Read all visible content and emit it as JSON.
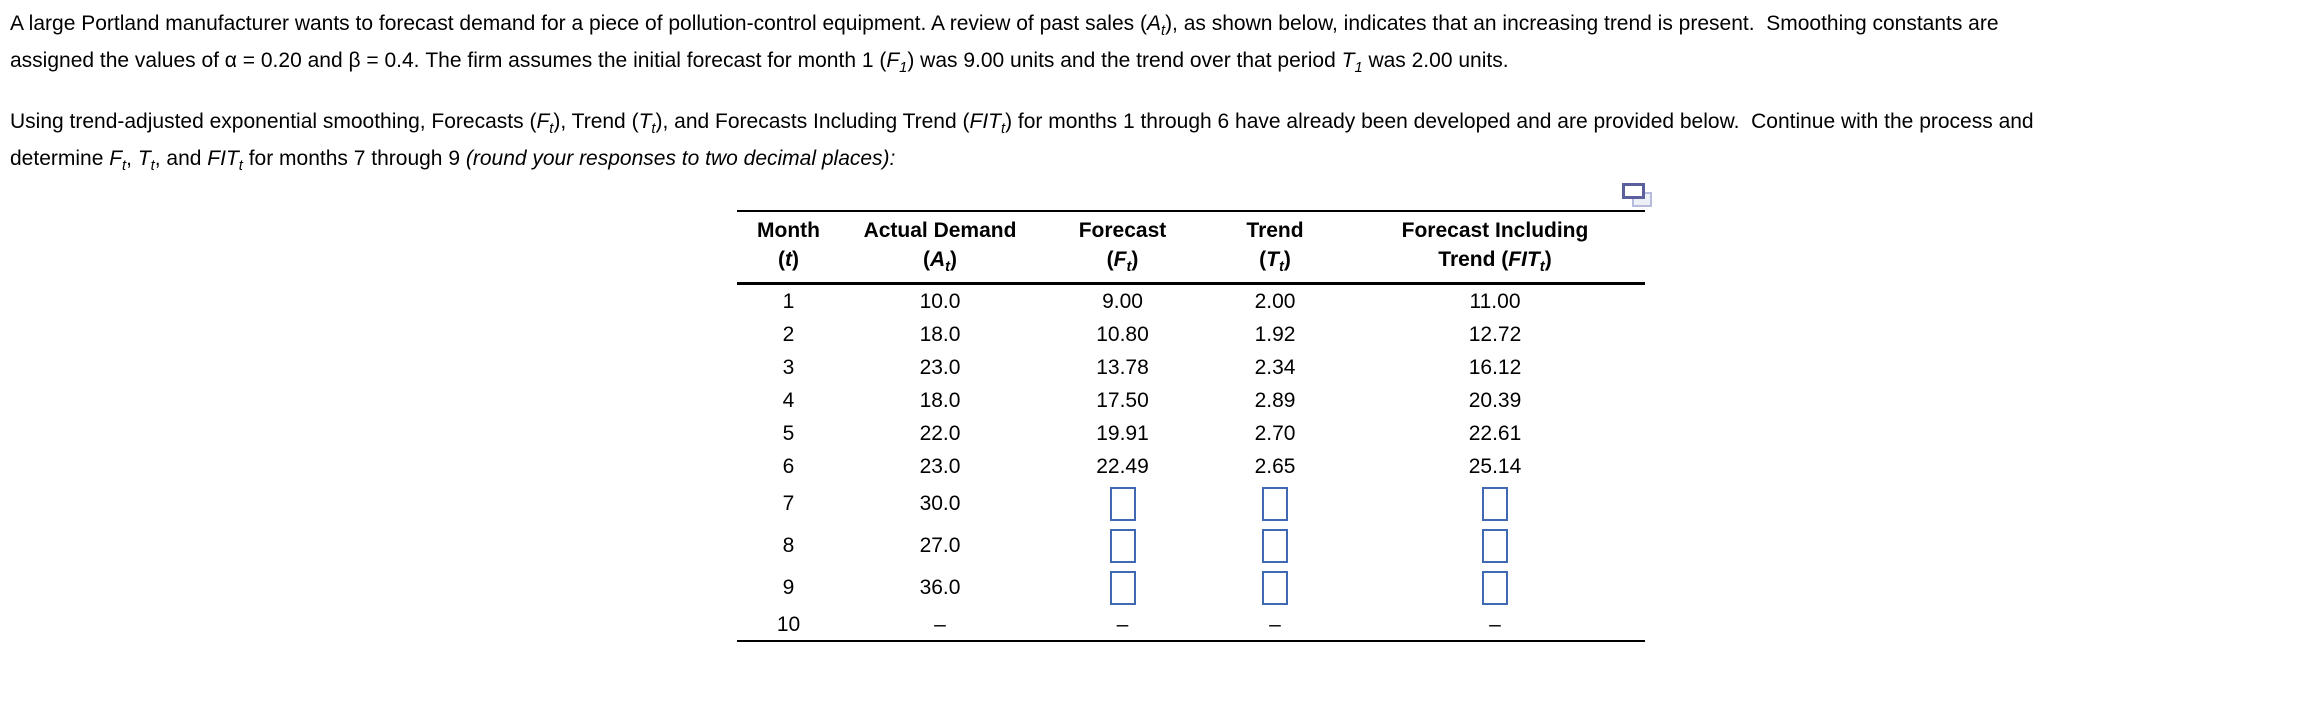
{
  "page": {
    "background": "#ffffff",
    "accent_blue": "#4169b1",
    "icon": {
      "name": "copy-table-icon",
      "shape": "two-overlapping-rectangles",
      "color_front": "#5b5f9e",
      "color_back": "#b7bcde"
    }
  },
  "intro": {
    "line1": "A large Portland manufacturer wants to forecast demand for a piece of pollution-control equipment. A review of past sales (*A*~t~), as shown below, indicates that an increasing trend is present.  Smoothing constants are",
    "line2": "assigned the values of α = 0.20 and β = 0.4. The firm assumes the initial forecast for month 1 (*F*~1~) was 9.00 units and the trend over that period *T*~1~ was 2.00 units."
  },
  "task": {
    "line1": "Using trend-adjusted exponential smoothing, Forecasts (*F*~t~), Trend (*T*~t~), and Forecasts Including Trend (*FIT*~t~) for months 1 through 6 have already been developed and are provided below.  Continue with the process and",
    "line2": "determine *F*~t~, *T*~t~, and *FIT*~t~ for months 7 through 9 *(round your responses to two decimal places):*"
  },
  "table": {
    "headers": [
      {
        "key": "month",
        "line1": "Month",
        "line2": "(*t*)"
      },
      {
        "key": "actual-demand",
        "line1": "Actual Demand",
        "line2": "(*A*~t~)"
      },
      {
        "key": "forecast",
        "line1": "Forecast",
        "line2": "(*F*~t~)"
      },
      {
        "key": "trend",
        "line1": "Trend",
        "line2": "(*T*~t~)"
      },
      {
        "key": "forecast-including-trend",
        "line1": "Forecast Including",
        "line2": "Trend (*FIT*~t~)"
      }
    ],
    "rows": [
      {
        "month": "1",
        "demand": "10.0",
        "forecast": "9.00",
        "trend": "2.00",
        "fit": "11.00"
      },
      {
        "month": "2",
        "demand": "18.0",
        "forecast": "10.80",
        "trend": "1.92",
        "fit": "12.72"
      },
      {
        "month": "3",
        "demand": "23.0",
        "forecast": "13.78",
        "trend": "2.34",
        "fit": "16.12"
      },
      {
        "month": "4",
        "demand": "18.0",
        "forecast": "17.50",
        "trend": "2.89",
        "fit": "20.39"
      },
      {
        "month": "5",
        "demand": "22.0",
        "forecast": "19.91",
        "trend": "2.70",
        "fit": "22.61"
      },
      {
        "month": "6",
        "demand": "23.0",
        "forecast": "22.49",
        "trend": "2.65",
        "fit": "25.14"
      },
      {
        "month": "7",
        "demand": "30.0",
        "forecast": "",
        "trend": "",
        "fit": "",
        "input": true
      },
      {
        "month": "8",
        "demand": "27.0",
        "forecast": "",
        "trend": "",
        "fit": "",
        "input": true
      },
      {
        "month": "9",
        "demand": "36.0",
        "forecast": "",
        "trend": "",
        "fit": "",
        "input": true
      },
      {
        "month": "10",
        "demand": "–",
        "forecast": "–",
        "trend": "–",
        "fit": "–"
      }
    ]
  }
}
